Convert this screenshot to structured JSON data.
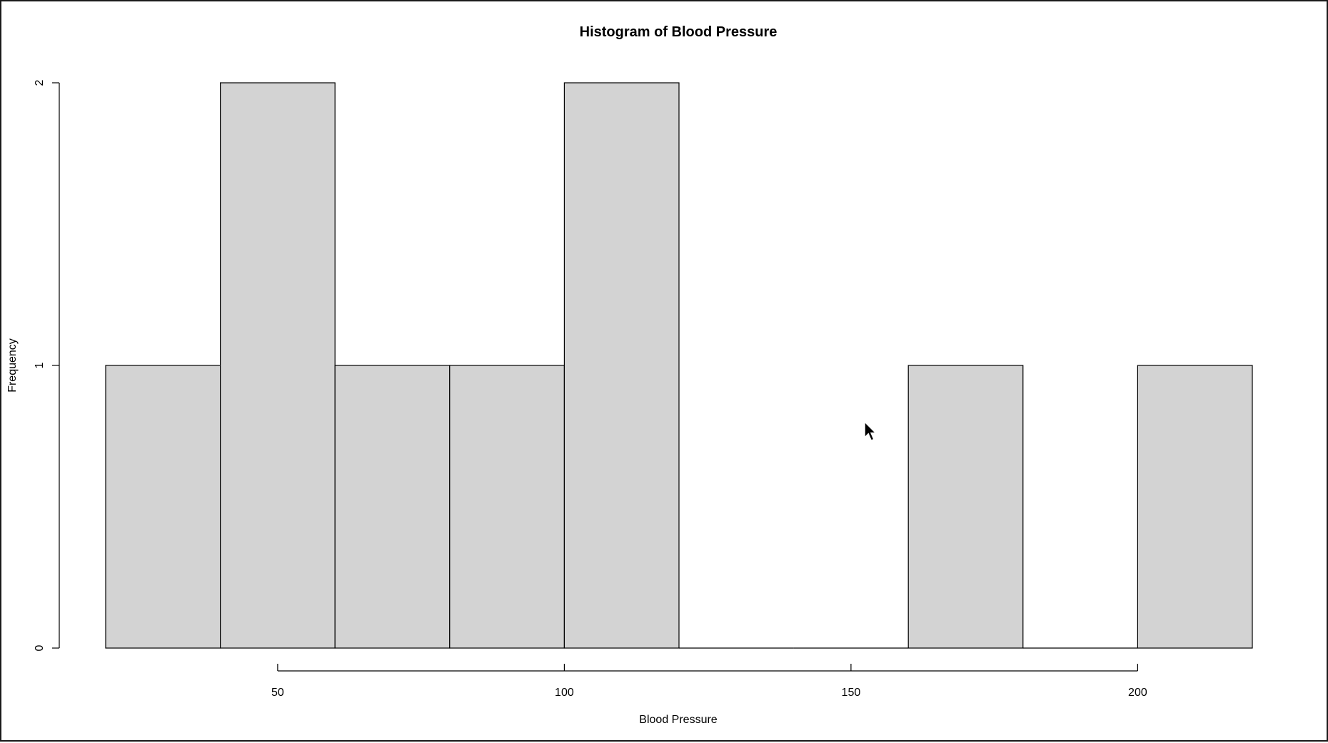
{
  "chart_data": {
    "type": "bar",
    "title": "Histogram of Blood Pressure",
    "xlabel": "Blood Pressure",
    "ylabel": "Frequency",
    "bins": [
      {
        "from": 20,
        "to": 40,
        "count": 1
      },
      {
        "from": 40,
        "to": 60,
        "count": 2
      },
      {
        "from": 60,
        "to": 80,
        "count": 1
      },
      {
        "from": 80,
        "to": 100,
        "count": 1
      },
      {
        "from": 100,
        "to": 120,
        "count": 2
      },
      {
        "from": 120,
        "to": 140,
        "count": 0
      },
      {
        "from": 140,
        "to": 160,
        "count": 0
      },
      {
        "from": 160,
        "to": 180,
        "count": 1
      },
      {
        "from": 180,
        "to": 200,
        "count": 0
      },
      {
        "from": 200,
        "to": 220,
        "count": 1
      }
    ],
    "x_ticks": [
      50,
      100,
      150,
      200
    ],
    "x_tick_labels": [
      "50",
      "100",
      "150",
      "200"
    ],
    "y_ticks": [
      0,
      1,
      2
    ],
    "y_tick_labels": [
      "0",
      "1",
      "2"
    ],
    "xlim": [
      20,
      220
    ],
    "ylim": [
      0,
      2
    ],
    "grid": false,
    "legend": "none",
    "bar_fill": "#d3d3d3",
    "bar_stroke": "#000000"
  }
}
